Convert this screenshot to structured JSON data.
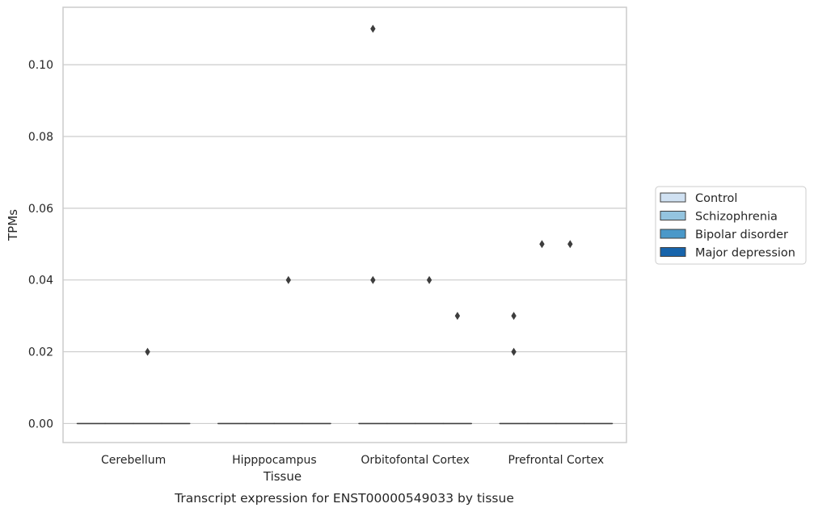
{
  "chart_data": {
    "type": "box",
    "xlabel": "Tissue",
    "ylabel": "TPMs",
    "caption": "Transcript expression for ENST00000549033 by tissue",
    "categories": [
      "Cerebellum",
      "Hipppocampus",
      "Orbitofontal Cortex",
      "Prefrontal Cortex"
    ],
    "ylim": [
      -0.0053,
      0.116
    ],
    "yticks": [
      0.0,
      0.02,
      0.04,
      0.06,
      0.08,
      0.1
    ],
    "ytick_labels": [
      "0.00",
      "0.02",
      "0.04",
      "0.06",
      "0.08",
      "0.10"
    ],
    "grid": "horizontal",
    "legend_position": "right",
    "series": [
      {
        "name": "Control",
        "color": "#d0e1f2",
        "median": [
          0,
          0,
          0,
          0
        ],
        "q1": [
          0,
          0,
          0,
          0
        ],
        "q3": [
          0,
          0,
          0,
          0
        ],
        "outliers": [
          [],
          [],
          [
            0.11,
            0.04
          ],
          [
            0.03,
            0.02
          ]
        ]
      },
      {
        "name": "Schizophrenia",
        "color": "#94c4df",
        "median": [
          0,
          0,
          0,
          0
        ],
        "q1": [
          0,
          0,
          0,
          0
        ],
        "q3": [
          0,
          0,
          0,
          0
        ],
        "outliers": [
          [],
          [],
          [],
          [
            0.05
          ]
        ]
      },
      {
        "name": "Bipolar disorder",
        "color": "#4a98c9",
        "median": [
          0,
          0,
          0,
          0
        ],
        "q1": [
          0,
          0,
          0,
          0
        ],
        "q3": [
          0,
          0,
          0,
          0
        ],
        "outliers": [
          [
            0.02
          ],
          [
            0.04
          ],
          [
            0.04
          ],
          [
            0.05
          ]
        ]
      },
      {
        "name": "Major depression",
        "color": "#1764ab",
        "median": [
          0,
          0,
          0,
          0
        ],
        "q1": [
          0,
          0,
          0,
          0
        ],
        "q3": [
          0,
          0,
          0,
          0
        ],
        "outliers": [
          [],
          [],
          [
            0.03
          ],
          []
        ]
      }
    ]
  }
}
